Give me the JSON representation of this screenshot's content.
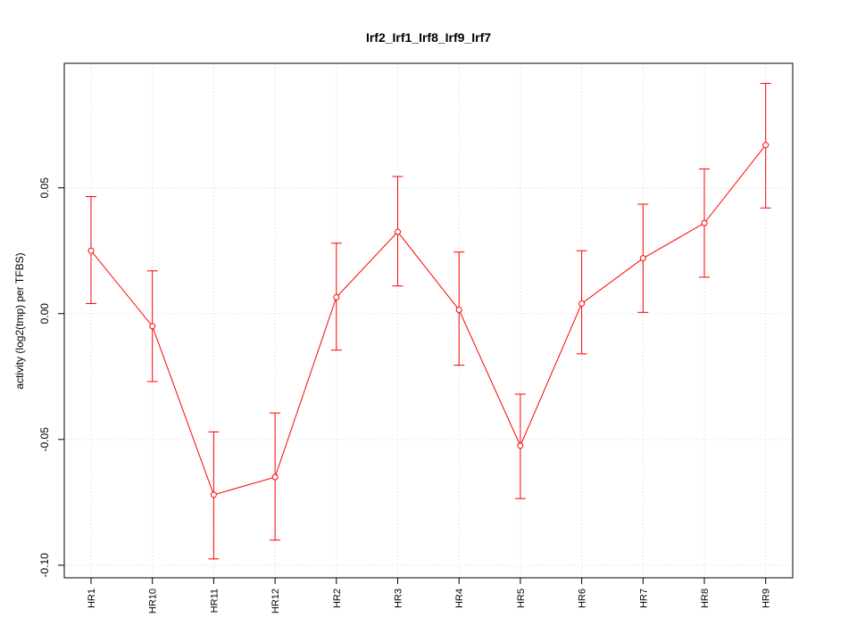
{
  "chart_data": {
    "type": "line",
    "title": "Irf2_Irf1_Irf8_Irf9_Irf7",
    "xlabel": "",
    "ylabel": "activity (log2(tmp) per TFBS)",
    "categories": [
      "HR1",
      "HR10",
      "HR11",
      "HR12",
      "HR2",
      "HR3",
      "HR4",
      "HR5",
      "HR6",
      "HR7",
      "HR8",
      "HR9"
    ],
    "series": [
      {
        "values": [
          0.025,
          -0.005,
          -0.072,
          -0.065,
          0.0065,
          0.0325,
          0.0015,
          -0.0525,
          0.004,
          0.022,
          0.036,
          0.067
        ],
        "upper": [
          0.0465,
          0.017,
          -0.047,
          -0.0395,
          0.028,
          0.0545,
          0.0245,
          -0.032,
          0.025,
          0.0435,
          0.0575,
          0.0915
        ],
        "lower": [
          0.004,
          -0.027,
          -0.0975,
          -0.09,
          -0.0145,
          0.011,
          -0.0205,
          -0.0735,
          -0.016,
          0.0005,
          0.0145,
          0.042
        ]
      }
    ],
    "ylim": [
      -0.105,
      0.0995
    ],
    "yticks": [
      -0.1,
      -0.05,
      0.0,
      0.05
    ],
    "ytick_labels": [
      "-0.10",
      "-0.05",
      "0.00",
      "0.05"
    ],
    "grid": true,
    "colors": {
      "series": "#ff0000",
      "grid": "#d3d3d3",
      "axis": "#000000"
    }
  }
}
